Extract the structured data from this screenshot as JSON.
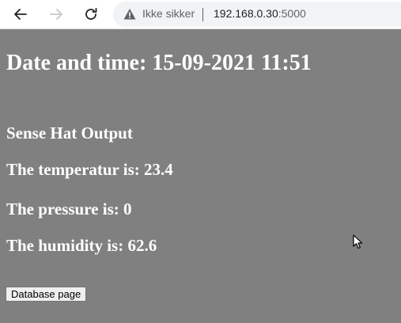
{
  "browser": {
    "security_label": "Ikke sikker",
    "url_host": "192.168.0.30",
    "url_port": ":5000"
  },
  "page": {
    "datetime_heading": "Date and time: 15-09-2021 11:51",
    "section_heading": "Sense Hat Output",
    "temperature_line": "The temperatur is: 23.4",
    "pressure_line": "The pressure is: 0",
    "humidity_line": "The humidity is: 62.6",
    "database_button_label": "Database page",
    "background_color": "#808080",
    "text_color": "#ffffff"
  },
  "icons": {
    "back": "arrow-left-icon",
    "forward": "arrow-right-icon",
    "reload": "reload-icon",
    "security": "warning-triangle-icon",
    "cursor": "mouse-pointer-icon"
  }
}
